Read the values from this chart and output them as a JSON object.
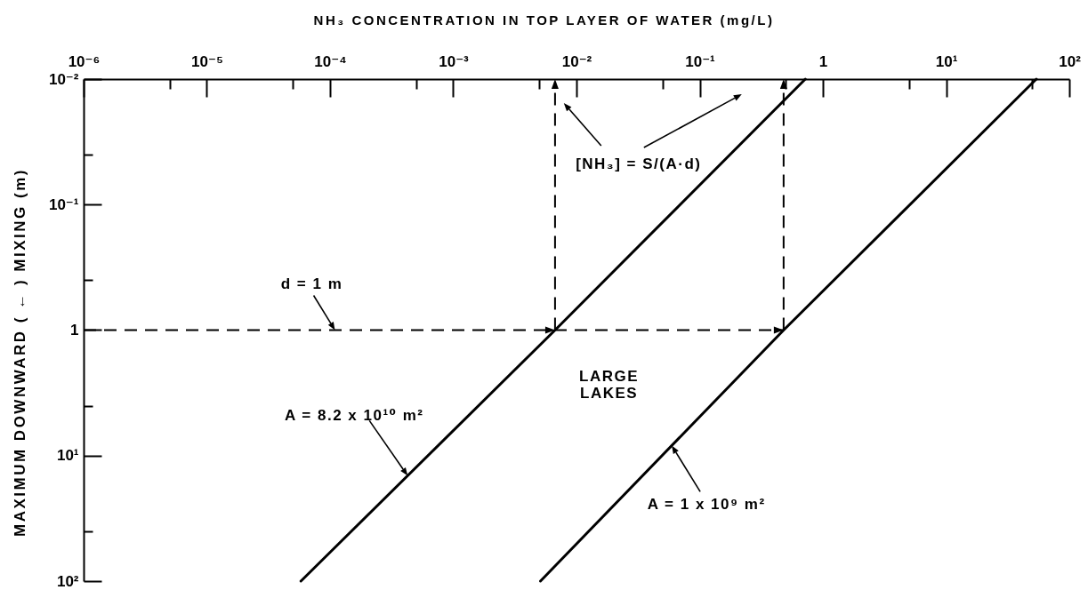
{
  "chart_data": {
    "type": "line",
    "xlabel": "NH₃ CONCENTRATION IN TOP LAYER OF WATER (mg/L)",
    "ylabel": "MAXIMUM DOWNWARD ( ← ) MIXING (m)",
    "log": "xy",
    "xlim": [
      1e-06,
      100
    ],
    "xticks": [
      {
        "value": 1e-06,
        "label": "10⁻⁶"
      },
      {
        "value": 5e-06,
        "label": null
      },
      {
        "value": 1e-05,
        "label": "10⁻⁵"
      },
      {
        "value": 5e-05,
        "label": null
      },
      {
        "value": 0.0001,
        "label": "10⁻⁴"
      },
      {
        "value": 0.0005,
        "label": null
      },
      {
        "value": 0.001,
        "label": "10⁻³"
      },
      {
        "value": 0.005,
        "label": null
      },
      {
        "value": 0.01,
        "label": "10⁻²"
      },
      {
        "value": 0.05,
        "label": null
      },
      {
        "value": 0.1,
        "label": "10⁻¹"
      },
      {
        "value": 0.5,
        "label": null
      },
      1,
      {
        "value": 5,
        "label": null
      },
      {
        "value": 10,
        "label": "10¹"
      },
      {
        "value": 50,
        "label": null
      },
      {
        "value": 100,
        "label": "10²"
      }
    ],
    "ylim": [
      100,
      0.01
    ],
    "yticks": [
      {
        "value": 0.01,
        "label": "10⁻²"
      },
      {
        "value": 0.04,
        "label": null
      },
      {
        "value": 0.1,
        "label": "10⁻¹"
      },
      {
        "value": 0.4,
        "label": null
      },
      1,
      {
        "value": 4,
        "label": null
      },
      {
        "value": 10,
        "label": "10¹"
      },
      {
        "value": 40,
        "label": null
      },
      {
        "value": 100,
        "label": "10²"
      }
    ],
    "series": [
      {
        "name": "A = 8.2 x 10¹⁰ m²",
        "color": "#000000",
        "x": [
          5.8e-05,
          0.0067,
          0.72
        ],
        "values": [
          100,
          1,
          0.01
        ]
      },
      {
        "name": "A = 1 x 10⁹ m²",
        "color": "#000000",
        "x": [
          0.0051,
          0.48,
          54
        ],
        "values": [
          100,
          1,
          0.01
        ]
      }
    ],
    "ref_lines": [
      {
        "axis": "y",
        "value": 1,
        "label": "d = 1 m",
        "line_style": "dashed",
        "color": "#000000"
      }
    ],
    "annotations": [
      "[NH₃] = S/(A·d)",
      "LARGE LAKES"
    ]
  }
}
